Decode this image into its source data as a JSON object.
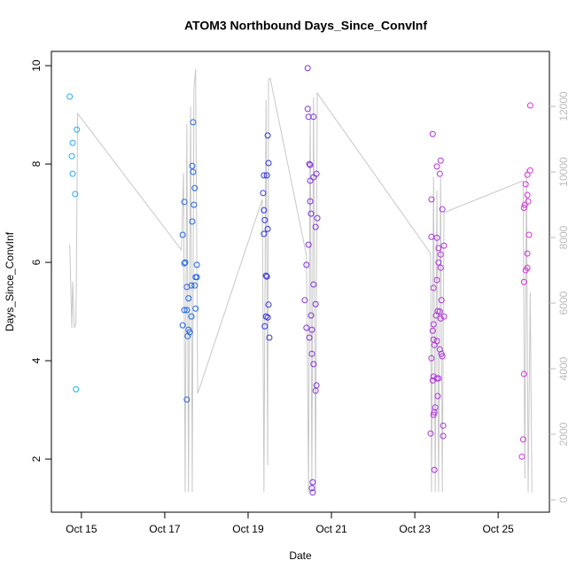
{
  "chart_data": {
    "type": "scatter",
    "title": "ATOM3 Northbound Days_Since_ConvInf",
    "xlabel": "Date",
    "ylabel": "Days_Since_ConvInf",
    "xlim": [
      14.28,
      26.23
    ],
    "ylim": [
      0.92,
      10.29
    ],
    "y2lim": [
      -378,
      13676
    ],
    "xticks": [
      {
        "value": 15,
        "label": "Oct 15"
      },
      {
        "value": 17,
        "label": "Oct 17"
      },
      {
        "value": 19,
        "label": "Oct 19"
      },
      {
        "value": 21,
        "label": "Oct 21"
      },
      {
        "value": 23,
        "label": "Oct 23"
      },
      {
        "value": 25,
        "label": "Oct 25"
      }
    ],
    "yticks": [
      2,
      4,
      6,
      8,
      10
    ],
    "y2ticks": [
      0,
      2000,
      4000,
      6000,
      8000,
      10000,
      12000
    ],
    "series": [
      {
        "type": "scatter",
        "color": "#22aaee",
        "x": [
          14.72,
          14.79,
          14.77,
          14.79,
          14.85,
          14.89,
          14.87
        ],
        "values": [
          9.37,
          8.43,
          8.16,
          7.8,
          7.39,
          8.7,
          3.42
        ]
      },
      {
        "type": "scatter",
        "color": "#2266e6",
        "x": [
          17.68,
          17.66,
          17.68,
          17.72,
          17.7,
          17.47,
          17.66,
          17.43,
          17.49,
          17.47,
          17.77,
          17.77,
          17.74,
          17.53,
          17.64,
          17.72,
          17.57,
          17.47,
          17.53,
          17.74,
          17.64,
          17.43,
          17.57,
          17.6,
          17.55,
          17.53
        ],
        "values": [
          8.85,
          7.96,
          7.84,
          7.51,
          7.17,
          7.23,
          6.83,
          6.56,
          6.0,
          5.98,
          5.95,
          5.7,
          5.7,
          5.5,
          5.53,
          5.53,
          5.27,
          5.03,
          5.03,
          5.06,
          4.9,
          4.72,
          4.63,
          4.58,
          4.5,
          3.21
        ]
      },
      {
        "type": "scatter",
        "color": "#3333e0",
        "x": [
          19.47,
          19.49,
          19.38,
          19.45,
          19.36,
          19.38,
          19.4,
          19.47,
          19.38,
          19.43,
          19.45,
          19.49,
          19.43,
          19.47,
          19.4,
          19.51
        ],
        "values": [
          8.58,
          8.02,
          7.77,
          7.77,
          7.41,
          7.06,
          6.86,
          6.68,
          6.58,
          5.73,
          5.71,
          5.14,
          4.9,
          4.88,
          4.7,
          4.47
        ]
      },
      {
        "type": "scatter",
        "color": "#8030e0",
        "x": [
          20.43,
          20.43,
          20.45,
          20.57,
          20.47,
          20.49,
          20.64,
          20.57,
          20.49,
          20.49,
          20.51,
          20.66,
          20.62,
          20.45,
          20.4,
          20.57,
          20.36,
          20.62,
          20.51,
          20.4,
          20.53,
          20.47,
          20.53,
          20.57,
          20.64,
          20.62,
          20.55,
          20.53,
          20.55
        ],
        "values": [
          9.95,
          9.12,
          8.96,
          8.96,
          8.0,
          7.98,
          7.8,
          7.73,
          7.66,
          7.24,
          6.99,
          6.9,
          6.72,
          6.36,
          5.95,
          5.55,
          5.23,
          5.15,
          4.92,
          4.67,
          4.63,
          4.47,
          4.14,
          3.93,
          3.5,
          3.39,
          1.53,
          1.41,
          1.32
        ]
      },
      {
        "type": "scatter",
        "color": "#b030e0",
        "x": [
          23.43,
          23.62,
          23.53,
          23.6,
          23.4,
          23.66,
          23.4,
          23.53,
          23.7,
          23.57,
          23.62,
          23.57,
          23.62,
          23.53,
          23.45,
          23.64,
          23.55,
          23.6,
          23.51,
          23.7,
          23.62,
          23.45,
          23.43,
          23.45,
          23.53,
          23.47,
          23.6,
          23.64,
          23.66,
          23.4,
          23.45,
          23.43,
          23.53,
          23.57,
          23.55,
          23.49,
          23.47,
          23.45,
          23.68,
          23.38,
          23.68,
          23.47
        ],
        "values": [
          8.61,
          8.07,
          7.95,
          7.8,
          7.28,
          7.08,
          6.52,
          6.5,
          6.34,
          6.29,
          6.16,
          6.0,
          5.89,
          5.64,
          5.48,
          5.23,
          5.01,
          5.0,
          4.92,
          4.9,
          4.86,
          4.74,
          4.61,
          4.43,
          4.4,
          4.32,
          4.23,
          4.14,
          4.09,
          4.05,
          3.68,
          3.6,
          3.64,
          3.64,
          3.28,
          3.05,
          2.95,
          2.9,
          2.68,
          2.52,
          2.47,
          1.78
        ]
      },
      {
        "type": "scatter",
        "color": "#d830e0",
        "x": [
          25.77,
          25.77,
          25.7,
          25.66,
          25.7,
          25.72,
          25.64,
          25.62,
          25.74,
          25.7,
          25.7,
          25.66,
          25.62,
          25.62,
          25.6,
          25.57
        ],
        "values": [
          9.19,
          7.87,
          7.78,
          7.59,
          7.37,
          7.24,
          7.17,
          7.11,
          6.56,
          6.18,
          5.89,
          5.84,
          5.6,
          3.73,
          2.4,
          2.05
        ]
      },
      {
        "type": "line",
        "axis": "y2",
        "color": "#c8c8c8",
        "x": [
          14.72,
          14.77,
          14.79,
          14.83,
          14.87,
          14.91,
          17.4,
          17.45,
          17.49,
          17.53,
          17.57,
          17.62,
          17.66,
          17.7,
          17.74,
          17.79,
          19.34,
          19.38,
          19.43,
          19.47,
          19.49,
          19.53,
          20.4,
          20.45,
          20.49,
          20.53,
          20.57,
          20.62,
          20.66,
          23.38,
          23.4,
          23.45,
          23.49,
          23.53,
          23.57,
          23.62,
          23.66,
          23.7,
          25.6,
          25.64,
          25.68,
          25.72,
          25.77,
          25.81
        ],
        "values": [
          7780,
          5240,
          6650,
          5240,
          5380,
          11780,
          7620,
          9970,
          240,
          11460,
          240,
          12000,
          240,
          12540,
          13140,
          3240,
          9160,
          240,
          12190,
          1050,
          12810,
          12860,
          7460,
          240,
          12000,
          240,
          12270,
          240,
          12400,
          7510,
          240,
          9840,
          240,
          9430,
          240,
          9840,
          240,
          8760,
          9730,
          650,
          10110,
          220,
          6320,
          220
        ]
      }
    ]
  }
}
